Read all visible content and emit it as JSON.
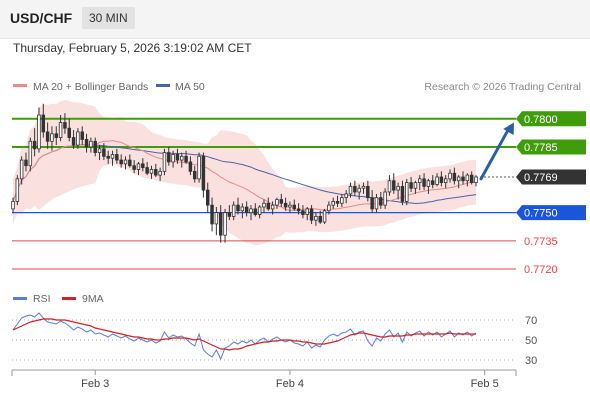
{
  "header": {
    "symbol": "USD/CHF",
    "timeframe": "30 MIN"
  },
  "timestamp": "Thursday, February 5, 2026 3:19:02 AM CET",
  "legend": {
    "ma20_label": "MA 20 + Bollinger Bands",
    "ma50_label": "MA 50",
    "copyright": "Research © 2026 Trading Central",
    "rsi_label": "RSI",
    "rsi_ma_label": "9MA"
  },
  "colors": {
    "bull": "#333333",
    "bear": "#333333",
    "ma20": "#e88a8a",
    "band_fill": "#fbe0e0",
    "ma50": "#4a62a8",
    "resistance": "#3f9c0b",
    "pivot": "#1a56db",
    "support": "#e04848",
    "last": "#333333",
    "rsi": "#5b7dd8",
    "rsi_ma": "#d42020",
    "arrow": "#2a5ea8"
  },
  "chart_data": [
    {
      "type": "candlestick",
      "timeframe": "30 MIN",
      "ylim": [
        0.7712,
        0.781
      ],
      "x_ticks": [
        {
          "label": "Feb 3",
          "index": 19
        },
        {
          "label": "Feb 4",
          "index": 64
        },
        {
          "label": "Feb 5",
          "index": 109
        }
      ],
      "levels": [
        {
          "value": 0.78,
          "label": "0.7800",
          "kind": "resistance"
        },
        {
          "value": 0.7785,
          "label": "0.7785",
          "kind": "resistance"
        },
        {
          "value": 0.775,
          "label": "0.7750",
          "kind": "pivot"
        },
        {
          "value": 0.7735,
          "label": "0.7735",
          "kind": "support"
        },
        {
          "value": 0.772,
          "label": "0.7720",
          "kind": "support"
        }
      ],
      "last_price": {
        "value": 0.7769,
        "label": "0.7769"
      },
      "forecast_arrow": {
        "from": 0.7768,
        "to": 0.7798
      },
      "candles": [
        [
          0.7752,
          0.7758,
          0.775,
          0.7756
        ],
        [
          0.7756,
          0.777,
          0.7754,
          0.7768
        ],
        [
          0.7768,
          0.778,
          0.7765,
          0.7778
        ],
        [
          0.7778,
          0.7782,
          0.7772,
          0.7775
        ],
        [
          0.7775,
          0.779,
          0.7772,
          0.7788
        ],
        [
          0.7788,
          0.7795,
          0.778,
          0.7784
        ],
        [
          0.7784,
          0.7806,
          0.7782,
          0.7802
        ],
        [
          0.7802,
          0.7808,
          0.779,
          0.7793
        ],
        [
          0.7793,
          0.7798,
          0.7784,
          0.7788
        ],
        [
          0.7788,
          0.7796,
          0.7783,
          0.7792
        ],
        [
          0.7792,
          0.7796,
          0.7786,
          0.779
        ],
        [
          0.779,
          0.7802,
          0.7788,
          0.7798
        ],
        [
          0.7798,
          0.7803,
          0.7792,
          0.7795
        ],
        [
          0.7795,
          0.78,
          0.7788,
          0.779
        ],
        [
          0.779,
          0.7794,
          0.7784,
          0.7786
        ],
        [
          0.7786,
          0.7795,
          0.7784,
          0.7793
        ],
        [
          0.7793,
          0.7796,
          0.7786,
          0.7789
        ],
        [
          0.7789,
          0.7792,
          0.7782,
          0.7785
        ],
        [
          0.7785,
          0.779,
          0.7782,
          0.7788
        ],
        [
          0.7788,
          0.779,
          0.778,
          0.7782
        ],
        [
          0.7782,
          0.7786,
          0.7778,
          0.7784
        ],
        [
          0.7784,
          0.7787,
          0.7778,
          0.778
        ],
        [
          0.778,
          0.7783,
          0.7776,
          0.7779
        ],
        [
          0.7779,
          0.7783,
          0.7775,
          0.7781
        ],
        [
          0.7781,
          0.7784,
          0.7776,
          0.7778
        ],
        [
          0.7778,
          0.7781,
          0.7774,
          0.7776
        ],
        [
          0.7776,
          0.778,
          0.7773,
          0.7778
        ],
        [
          0.7778,
          0.7781,
          0.7774,
          0.7775
        ],
        [
          0.7775,
          0.7778,
          0.7771,
          0.7773
        ],
        [
          0.7773,
          0.7777,
          0.777,
          0.7776
        ],
        [
          0.7776,
          0.7779,
          0.7772,
          0.7774
        ],
        [
          0.7774,
          0.7777,
          0.777,
          0.7771
        ],
        [
          0.7771,
          0.7775,
          0.7768,
          0.7773
        ],
        [
          0.7773,
          0.7776,
          0.7769,
          0.777
        ],
        [
          0.777,
          0.7774,
          0.7767,
          0.7772
        ],
        [
          0.7772,
          0.7784,
          0.777,
          0.7782
        ],
        [
          0.7782,
          0.7785,
          0.7775,
          0.7777
        ],
        [
          0.7777,
          0.7783,
          0.7774,
          0.7781
        ],
        [
          0.7781,
          0.7784,
          0.7776,
          0.7778
        ],
        [
          0.7778,
          0.7782,
          0.7774,
          0.778
        ],
        [
          0.778,
          0.7783,
          0.7776,
          0.7777
        ],
        [
          0.7777,
          0.778,
          0.777,
          0.7772
        ],
        [
          0.7772,
          0.7775,
          0.7766,
          0.7768
        ],
        [
          0.7768,
          0.7782,
          0.7766,
          0.778
        ],
        [
          0.778,
          0.7782,
          0.7758,
          0.7762
        ],
        [
          0.7762,
          0.7766,
          0.775,
          0.7754
        ],
        [
          0.7754,
          0.7758,
          0.774,
          0.7744
        ],
        [
          0.7744,
          0.7753,
          0.7738,
          0.775
        ],
        [
          0.775,
          0.7754,
          0.7734,
          0.7738
        ],
        [
          0.7738,
          0.7752,
          0.7734,
          0.775
        ],
        [
          0.775,
          0.7754,
          0.7746,
          0.7748
        ],
        [
          0.7748,
          0.7756,
          0.7746,
          0.7754
        ],
        [
          0.7754,
          0.7758,
          0.7749,
          0.7751
        ],
        [
          0.7751,
          0.7755,
          0.7747,
          0.7753
        ],
        [
          0.7753,
          0.7756,
          0.7748,
          0.775
        ],
        [
          0.775,
          0.7754,
          0.7746,
          0.7752
        ],
        [
          0.7752,
          0.7755,
          0.7748,
          0.7749
        ],
        [
          0.7749,
          0.7754,
          0.7747,
          0.7753
        ],
        [
          0.7753,
          0.7757,
          0.775,
          0.7755
        ],
        [
          0.7755,
          0.7758,
          0.7751,
          0.7752
        ],
        [
          0.7752,
          0.7756,
          0.7749,
          0.7754
        ],
        [
          0.7754,
          0.7758,
          0.7752,
          0.7757
        ],
        [
          0.7757,
          0.776,
          0.7753,
          0.7755
        ],
        [
          0.7755,
          0.7758,
          0.7751,
          0.7753
        ],
        [
          0.7753,
          0.7756,
          0.775,
          0.7754
        ],
        [
          0.7754,
          0.7757,
          0.7751,
          0.7752
        ],
        [
          0.7752,
          0.7755,
          0.7749,
          0.7751
        ],
        [
          0.7751,
          0.7754,
          0.7747,
          0.7749
        ],
        [
          0.7749,
          0.7753,
          0.7746,
          0.7752
        ],
        [
          0.7752,
          0.7754,
          0.7744,
          0.7746
        ],
        [
          0.7746,
          0.775,
          0.7743,
          0.7748
        ],
        [
          0.7748,
          0.7751,
          0.7744,
          0.7745
        ],
        [
          0.7745,
          0.7752,
          0.7744,
          0.7751
        ],
        [
          0.7751,
          0.7756,
          0.7749,
          0.7754
        ],
        [
          0.7754,
          0.7758,
          0.7752,
          0.7756
        ],
        [
          0.7756,
          0.7759,
          0.7753,
          0.7755
        ],
        [
          0.7755,
          0.776,
          0.7753,
          0.7758
        ],
        [
          0.7758,
          0.7762,
          0.7755,
          0.776
        ],
        [
          0.776,
          0.7766,
          0.7758,
          0.7764
        ],
        [
          0.7764,
          0.7767,
          0.7759,
          0.7761
        ],
        [
          0.7761,
          0.7765,
          0.7757,
          0.7763
        ],
        [
          0.7763,
          0.7766,
          0.776,
          0.7764
        ],
        [
          0.7764,
          0.7767,
          0.7756,
          0.7758
        ],
        [
          0.7758,
          0.7762,
          0.775,
          0.7752
        ],
        [
          0.7752,
          0.776,
          0.775,
          0.7758
        ],
        [
          0.7758,
          0.7761,
          0.7752,
          0.7754
        ],
        [
          0.7754,
          0.7763,
          0.7752,
          0.7761
        ],
        [
          0.7761,
          0.777,
          0.7759,
          0.7767
        ],
        [
          0.7767,
          0.7771,
          0.776,
          0.7762
        ],
        [
          0.7762,
          0.7766,
          0.7757,
          0.7764
        ],
        [
          0.7764,
          0.7767,
          0.7754,
          0.7756
        ],
        [
          0.7756,
          0.7768,
          0.7754,
          0.7766
        ],
        [
          0.7766,
          0.7769,
          0.7761,
          0.7763
        ],
        [
          0.7763,
          0.7767,
          0.776,
          0.7766
        ],
        [
          0.7766,
          0.777,
          0.7762,
          0.7768
        ],
        [
          0.7768,
          0.7771,
          0.7762,
          0.7764
        ],
        [
          0.7764,
          0.7768,
          0.776,
          0.7767
        ],
        [
          0.7767,
          0.777,
          0.7763,
          0.7765
        ],
        [
          0.7765,
          0.7771,
          0.7764,
          0.7769
        ],
        [
          0.7769,
          0.7772,
          0.7764,
          0.7766
        ],
        [
          0.7766,
          0.777,
          0.7763,
          0.7768
        ],
        [
          0.7768,
          0.7773,
          0.7766,
          0.7771
        ],
        [
          0.7771,
          0.7774,
          0.7765,
          0.7767
        ],
        [
          0.7767,
          0.777,
          0.7763,
          0.7769
        ],
        [
          0.7769,
          0.7772,
          0.7765,
          0.7767
        ],
        [
          0.7767,
          0.7771,
          0.7764,
          0.777
        ],
        [
          0.777,
          0.7772,
          0.7765,
          0.7766
        ],
        [
          0.7766,
          0.777,
          0.7764,
          0.7769
        ]
      ]
    },
    {
      "type": "line",
      "name": "RSI",
      "ylim": [
        22,
        78
      ],
      "y_ticks": [
        70,
        50,
        30
      ],
      "series": [
        {
          "name": "RSI",
          "values": [
            60,
            66,
            72,
            74,
            75,
            73,
            77,
            72,
            68,
            67,
            66,
            69,
            67,
            64,
            60,
            63,
            61,
            58,
            60,
            56,
            57,
            55,
            53,
            56,
            54,
            52,
            54,
            51,
            49,
            52,
            50,
            48,
            50,
            47,
            49,
            58,
            52,
            55,
            53,
            54,
            51,
            47,
            44,
            56,
            40,
            36,
            33,
            40,
            31,
            42,
            44,
            48,
            46,
            49,
            47,
            50,
            46,
            50,
            52,
            48,
            51,
            53,
            50,
            48,
            50,
            47,
            46,
            44,
            48,
            42,
            45,
            43,
            50,
            54,
            56,
            54,
            57,
            58,
            61,
            55,
            58,
            59,
            49,
            44,
            52,
            49,
            56,
            60,
            53,
            57,
            48,
            58,
            54,
            57,
            59,
            54,
            58,
            55,
            58,
            53,
            56,
            59,
            53,
            57,
            55,
            58,
            54,
            57
          ]
        },
        {
          "name": "9MA",
          "values": [
            60,
            62,
            64,
            66,
            68,
            69,
            70,
            71,
            71,
            71,
            70,
            70,
            70,
            69,
            68,
            67,
            66,
            65,
            64,
            62,
            61,
            60,
            59,
            58,
            57,
            56,
            55,
            54,
            53,
            53,
            52,
            51,
            51,
            50,
            50,
            51,
            51,
            52,
            52,
            52,
            52,
            51,
            50,
            51,
            49,
            47,
            45,
            43,
            41,
            41,
            40,
            41,
            41,
            42,
            44,
            45,
            46,
            47,
            48,
            48,
            49,
            49,
            50,
            50,
            50,
            49,
            49,
            48,
            48,
            47,
            46,
            46,
            46,
            47,
            48,
            49,
            51,
            53,
            55,
            56,
            57,
            57,
            56,
            55,
            54,
            53,
            53,
            54,
            54,
            54,
            54,
            55,
            55,
            56,
            56,
            56,
            56,
            56,
            56,
            56,
            56,
            57,
            56,
            56,
            56,
            56,
            56,
            56
          ]
        }
      ]
    }
  ]
}
